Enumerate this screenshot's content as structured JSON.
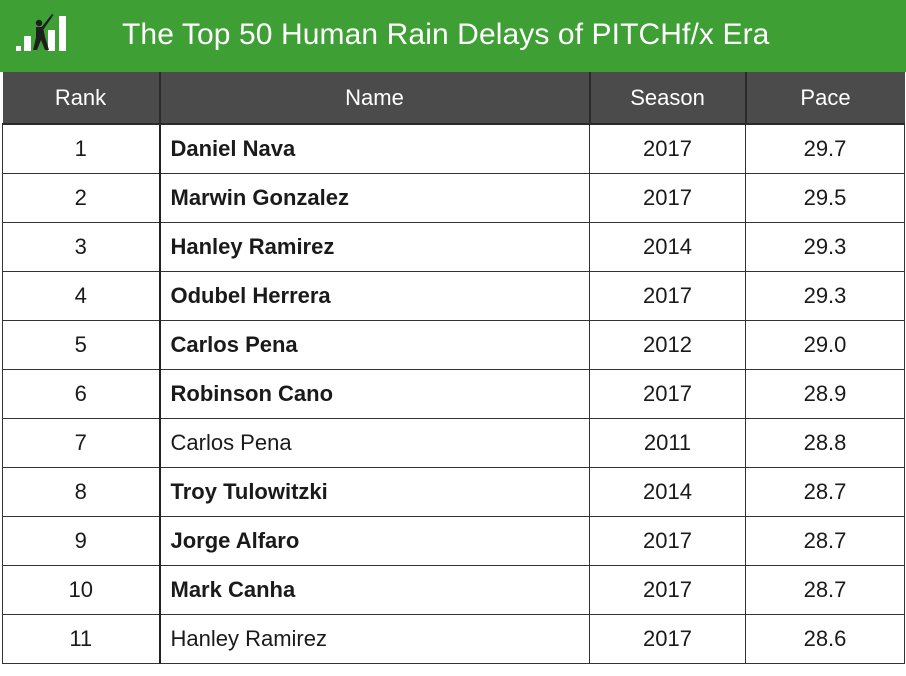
{
  "header": {
    "title": "The Top 50 Human Rain Delays of PITCHf/x Era",
    "logo_icon": "baseball-batter-bars-icon",
    "brand_color": "#3d9f34"
  },
  "table": {
    "columns": [
      "Rank",
      "Name",
      "Season",
      "Pace"
    ],
    "rows": [
      {
        "rank": "1",
        "name": "Daniel Nava",
        "season": "2017",
        "pace": "29.7",
        "bold": true
      },
      {
        "rank": "2",
        "name": "Marwin Gonzalez",
        "season": "2017",
        "pace": "29.5",
        "bold": true
      },
      {
        "rank": "3",
        "name": "Hanley Ramirez",
        "season": "2014",
        "pace": "29.3",
        "bold": true
      },
      {
        "rank": "4",
        "name": "Odubel Herrera",
        "season": "2017",
        "pace": "29.3",
        "bold": true
      },
      {
        "rank": "5",
        "name": "Carlos Pena",
        "season": "2012",
        "pace": "29.0",
        "bold": true
      },
      {
        "rank": "6",
        "name": "Robinson Cano",
        "season": "2017",
        "pace": "28.9",
        "bold": true
      },
      {
        "rank": "7",
        "name": "Carlos Pena",
        "season": "2011",
        "pace": "28.8",
        "bold": false
      },
      {
        "rank": "8",
        "name": "Troy Tulowitzki",
        "season": "2014",
        "pace": "28.7",
        "bold": true
      },
      {
        "rank": "9",
        "name": "Jorge Alfaro",
        "season": "2017",
        "pace": "28.7",
        "bold": true
      },
      {
        "rank": "10",
        "name": "Mark Canha",
        "season": "2017",
        "pace": "28.7",
        "bold": true
      },
      {
        "rank": "11",
        "name": "Hanley Ramirez",
        "season": "2017",
        "pace": "28.6",
        "bold": false
      }
    ]
  }
}
